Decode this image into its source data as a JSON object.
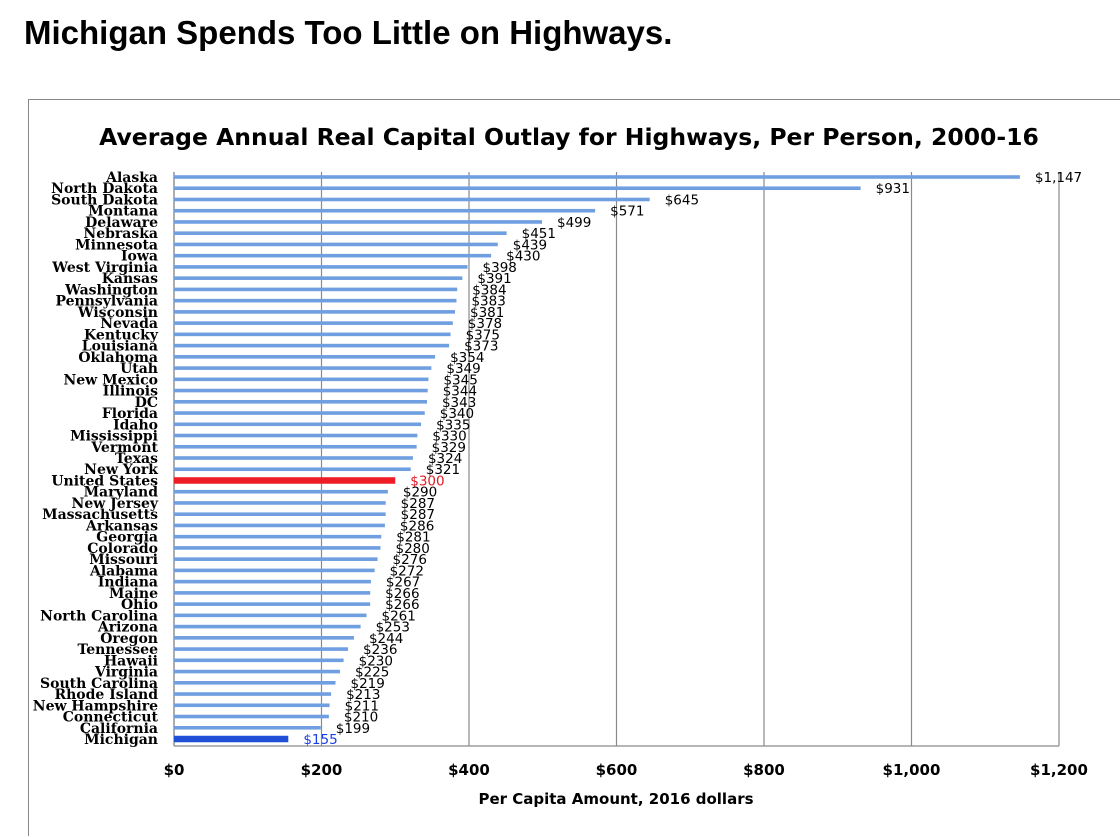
{
  "slide_title": "Michigan Spends Too Little on Highways.",
  "colors": {
    "bar": "#6f9fe0",
    "highlight_us": "#ee1c24",
    "highlight_mi": "#1f4fd6",
    "label_us": "#e01c24",
    "label_mi": "#1a3fe0",
    "grid": "#8a8a8a",
    "text": "#000000"
  },
  "chart_data": {
    "type": "bar",
    "orientation": "horizontal",
    "title": "Average Annual Real Capital Outlay for Highways, Per Person, 2000-16",
    "xlabel": "Per Capita Amount, 2016 dollars",
    "ylabel": "",
    "xlim": [
      0,
      1200
    ],
    "xticks": [
      0,
      200,
      400,
      600,
      800,
      1000,
      1200
    ],
    "xtick_labels": [
      "$0",
      "$200",
      "$400",
      "$600",
      "$800",
      "$1,000",
      "$1,200"
    ],
    "grid": true,
    "highlight": {
      "United States": "us",
      "Michigan": "mi"
    },
    "categories": [
      "Alaska",
      "North Dakota",
      "South Dakota",
      "Montana",
      "Delaware",
      "Nebraska",
      "Minnesota",
      "Iowa",
      "West Virginia",
      "Kansas",
      "Washington",
      "Pennsylvania",
      "Wisconsin",
      "Nevada",
      "Kentucky",
      "Louisiana",
      "Oklahoma",
      "Utah",
      "New Mexico",
      "Illinois",
      "DC",
      "Florida",
      "Idaho",
      "Mississippi",
      "Vermont",
      "Texas",
      "New York",
      "United States",
      "Maryland",
      "New Jersey",
      "Massachusetts",
      "Arkansas",
      "Georgia",
      "Colorado",
      "Missouri",
      "Alabama",
      "Indiana",
      "Maine",
      "Ohio",
      "North Carolina",
      "Arizona",
      "Oregon",
      "Tennessee",
      "Hawaii",
      "Virginia",
      "South Carolina",
      "Rhode Island",
      "New Hampshire",
      "Connecticut",
      "California",
      "Michigan"
    ],
    "values": [
      1147,
      931,
      645,
      571,
      499,
      451,
      439,
      430,
      398,
      391,
      384,
      383,
      381,
      378,
      375,
      373,
      354,
      349,
      345,
      344,
      343,
      340,
      335,
      330,
      329,
      324,
      321,
      300,
      290,
      287,
      287,
      286,
      281,
      280,
      276,
      272,
      267,
      266,
      266,
      261,
      253,
      244,
      236,
      230,
      225,
      219,
      213,
      211,
      210,
      199,
      155
    ],
    "value_labels": [
      "$1,147",
      "$931",
      "$645",
      "$571",
      "$499",
      "$451",
      "$439",
      "$430",
      "$398",
      "$391",
      "$384",
      "$383",
      "$381",
      "$378",
      "$375",
      "$373",
      "$354",
      "$349",
      "$345",
      "$344",
      "$343",
      "$340",
      "$335",
      "$330",
      "$329",
      "$324",
      "$321",
      "$300",
      "$290",
      "$287",
      "$287",
      "$286",
      "$281",
      "$280",
      "$276",
      "$272",
      "$267",
      "$266",
      "$266",
      "$261",
      "$253",
      "$244",
      "$236",
      "$230",
      "$225",
      "$219",
      "$213",
      "$211",
      "$210",
      "$199",
      "$155"
    ]
  }
}
